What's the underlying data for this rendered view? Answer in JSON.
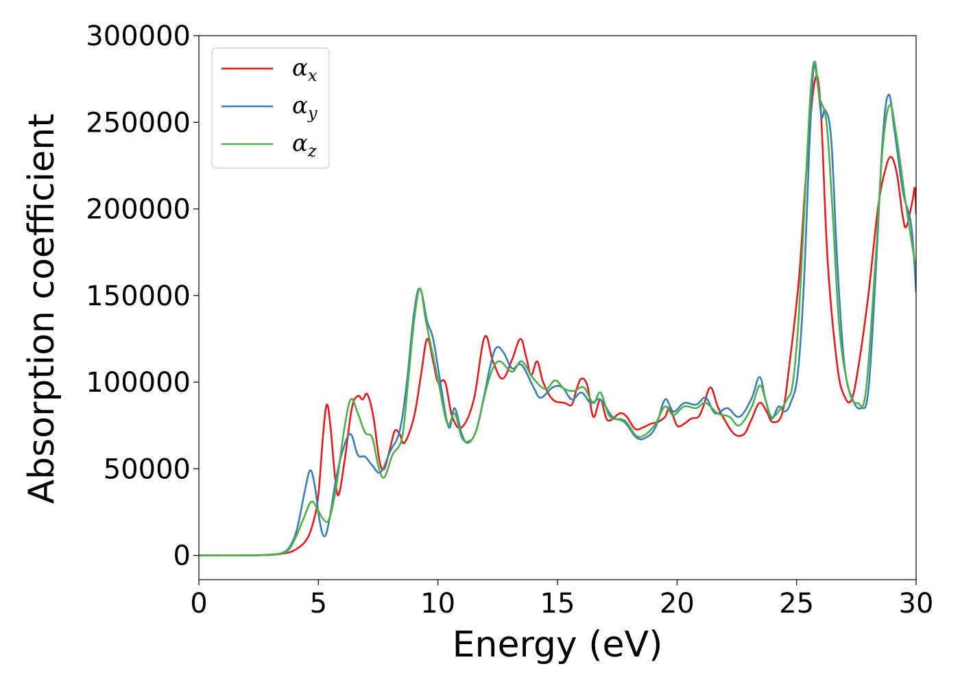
{
  "chart_data": {
    "type": "line",
    "xlabel": "Energy (eV)",
    "ylabel": "Absorption coefficient",
    "xlim": [
      0,
      30
    ],
    "ylim": [
      -14000,
      300000
    ],
    "xticks": [
      0,
      5,
      10,
      15,
      20,
      25,
      30
    ],
    "yticks": [
      0,
      50000,
      100000,
      150000,
      200000,
      250000,
      300000
    ],
    "grid": false,
    "legend": {
      "position": "top-left"
    },
    "series": [
      {
        "name": "αx",
        "symbol": "α",
        "subscript": "x",
        "color": "#e41a1c",
        "points": [
          [
            0,
            0
          ],
          [
            2,
            0
          ],
          [
            3,
            300
          ],
          [
            3.5,
            1000
          ],
          [
            4,
            3000
          ],
          [
            4.5,
            9000
          ],
          [
            4.8,
            20000
          ],
          [
            5,
            35000
          ],
          [
            5.2,
            70000
          ],
          [
            5.35,
            87000
          ],
          [
            5.5,
            75000
          ],
          [
            5.7,
            45000
          ],
          [
            5.85,
            35000
          ],
          [
            6.1,
            55000
          ],
          [
            6.4,
            85000
          ],
          [
            6.65,
            92000
          ],
          [
            6.85,
            90000
          ],
          [
            7.05,
            93000
          ],
          [
            7.3,
            80000
          ],
          [
            7.55,
            55000
          ],
          [
            7.75,
            50000
          ],
          [
            8.0,
            62000
          ],
          [
            8.2,
            72000
          ],
          [
            8.4,
            70000
          ],
          [
            8.6,
            65000
          ],
          [
            9.0,
            80000
          ],
          [
            9.3,
            105000
          ],
          [
            9.55,
            125000
          ],
          [
            9.8,
            112000
          ],
          [
            10.0,
            100000
          ],
          [
            10.3,
            100000
          ],
          [
            10.6,
            80000
          ],
          [
            11.0,
            74000
          ],
          [
            11.5,
            90000
          ],
          [
            11.95,
            126000
          ],
          [
            12.3,
            112000
          ],
          [
            12.7,
            102000
          ],
          [
            13.1,
            113000
          ],
          [
            13.45,
            125000
          ],
          [
            13.7,
            114000
          ],
          [
            13.9,
            104000
          ],
          [
            14.15,
            112000
          ],
          [
            14.4,
            100000
          ],
          [
            14.8,
            90000
          ],
          [
            15.3,
            88000
          ],
          [
            15.6,
            87000
          ],
          [
            15.8,
            96000
          ],
          [
            16.0,
            102000
          ],
          [
            16.25,
            98000
          ],
          [
            16.5,
            80000
          ],
          [
            16.8,
            90000
          ],
          [
            17.1,
            78000
          ],
          [
            17.6,
            82000
          ],
          [
            17.9,
            80000
          ],
          [
            18.25,
            73000
          ],
          [
            18.6,
            74000
          ],
          [
            18.9,
            76000
          ],
          [
            19.2,
            77000
          ],
          [
            19.5,
            80000
          ],
          [
            19.7,
            85000
          ],
          [
            20.0,
            75000
          ],
          [
            20.3,
            76000
          ],
          [
            20.6,
            79000
          ],
          [
            20.9,
            80000
          ],
          [
            21.1,
            86000
          ],
          [
            21.4,
            97000
          ],
          [
            21.7,
            86000
          ],
          [
            22.0,
            78000
          ],
          [
            22.4,
            70000
          ],
          [
            22.8,
            70000
          ],
          [
            23.1,
            78000
          ],
          [
            23.45,
            88000
          ],
          [
            23.75,
            83000
          ],
          [
            24.0,
            77000
          ],
          [
            24.4,
            82000
          ],
          [
            24.7,
            110000
          ],
          [
            25.1,
            160000
          ],
          [
            25.4,
            220000
          ],
          [
            25.75,
            273000
          ],
          [
            26.0,
            260000
          ],
          [
            26.3,
            170000
          ],
          [
            26.7,
            110000
          ],
          [
            27.0,
            92000
          ],
          [
            27.3,
            90000
          ],
          [
            27.6,
            110000
          ],
          [
            28.0,
            150000
          ],
          [
            28.4,
            200000
          ],
          [
            28.7,
            222000
          ],
          [
            28.95,
            230000
          ],
          [
            29.2,
            220000
          ],
          [
            29.45,
            195000
          ],
          [
            29.6,
            190000
          ],
          [
            29.85,
            205000
          ],
          [
            29.95,
            212000
          ],
          [
            30.0,
            197000
          ]
        ]
      },
      {
        "name": "αy",
        "symbol": "α",
        "subscript": "y",
        "color": "#377eb8",
        "points": [
          [
            0,
            0
          ],
          [
            2,
            0
          ],
          [
            3,
            500
          ],
          [
            3.5,
            1500
          ],
          [
            3.8,
            5000
          ],
          [
            4.1,
            15000
          ],
          [
            4.4,
            35000
          ],
          [
            4.65,
            49000
          ],
          [
            4.85,
            40000
          ],
          [
            5.05,
            20000
          ],
          [
            5.25,
            11000
          ],
          [
            5.45,
            20000
          ],
          [
            5.75,
            45000
          ],
          [
            6.05,
            62000
          ],
          [
            6.35,
            70000
          ],
          [
            6.65,
            58000
          ],
          [
            6.95,
            57000
          ],
          [
            7.25,
            52000
          ],
          [
            7.6,
            48000
          ],
          [
            8.0,
            60000
          ],
          [
            8.4,
            72000
          ],
          [
            8.7,
            100000
          ],
          [
            9.0,
            140000
          ],
          [
            9.25,
            154000
          ],
          [
            9.55,
            135000
          ],
          [
            9.8,
            125000
          ],
          [
            10.1,
            100000
          ],
          [
            10.45,
            74000
          ],
          [
            10.7,
            85000
          ],
          [
            11.0,
            70000
          ],
          [
            11.25,
            65000
          ],
          [
            11.6,
            72000
          ],
          [
            11.9,
            90000
          ],
          [
            12.2,
            110000
          ],
          [
            12.45,
            120000
          ],
          [
            12.75,
            117000
          ],
          [
            13.1,
            108000
          ],
          [
            13.5,
            110000
          ],
          [
            14.0,
            97000
          ],
          [
            14.3,
            91000
          ],
          [
            14.8,
            97000
          ],
          [
            15.2,
            97000
          ],
          [
            15.6,
            90000
          ],
          [
            16.0,
            94000
          ],
          [
            16.4,
            88000
          ],
          [
            16.8,
            90000
          ],
          [
            17.3,
            80000
          ],
          [
            17.8,
            77000
          ],
          [
            18.3,
            68000
          ],
          [
            18.7,
            68000
          ],
          [
            19.1,
            74000
          ],
          [
            19.5,
            90000
          ],
          [
            19.85,
            83000
          ],
          [
            20.3,
            88000
          ],
          [
            20.8,
            87000
          ],
          [
            21.2,
            91000
          ],
          [
            21.6,
            82000
          ],
          [
            22.1,
            85000
          ],
          [
            22.6,
            80000
          ],
          [
            23.1,
            90000
          ],
          [
            23.45,
            103000
          ],
          [
            23.7,
            90000
          ],
          [
            23.95,
            79000
          ],
          [
            24.25,
            86000
          ],
          [
            24.5,
            83000
          ],
          [
            24.75,
            88000
          ],
          [
            25.05,
            105000
          ],
          [
            25.3,
            155000
          ],
          [
            25.55,
            240000
          ],
          [
            25.72,
            282000
          ],
          [
            25.9,
            270000
          ],
          [
            26.05,
            253000
          ],
          [
            26.2,
            257000
          ],
          [
            26.45,
            240000
          ],
          [
            26.7,
            170000
          ],
          [
            27.0,
            110000
          ],
          [
            27.35,
            90000
          ],
          [
            27.7,
            85000
          ],
          [
            28.0,
            95000
          ],
          [
            28.3,
            160000
          ],
          [
            28.6,
            240000
          ],
          [
            28.85,
            266000
          ],
          [
            29.1,
            245000
          ],
          [
            29.45,
            210000
          ],
          [
            29.8,
            190000
          ],
          [
            30.0,
            152000
          ]
        ]
      },
      {
        "name": "αz",
        "symbol": "α",
        "subscript": "z",
        "color": "#4daf4a",
        "points": [
          [
            0,
            0
          ],
          [
            2,
            0
          ],
          [
            3,
            400
          ],
          [
            3.5,
            1200
          ],
          [
            3.8,
            4000
          ],
          [
            4.1,
            12000
          ],
          [
            4.4,
            22000
          ],
          [
            4.7,
            31000
          ],
          [
            4.95,
            27000
          ],
          [
            5.2,
            21000
          ],
          [
            5.45,
            21000
          ],
          [
            5.75,
            40000
          ],
          [
            6.05,
            70000
          ],
          [
            6.35,
            90000
          ],
          [
            6.65,
            82000
          ],
          [
            6.95,
            71000
          ],
          [
            7.25,
            68000
          ],
          [
            7.5,
            52000
          ],
          [
            7.75,
            45000
          ],
          [
            8.1,
            58000
          ],
          [
            8.5,
            68000
          ],
          [
            8.75,
            100000
          ],
          [
            9.0,
            135000
          ],
          [
            9.25,
            154000
          ],
          [
            9.5,
            135000
          ],
          [
            9.8,
            115000
          ],
          [
            10.05,
            98000
          ],
          [
            10.4,
            76000
          ],
          [
            10.7,
            82000
          ],
          [
            11.0,
            68000
          ],
          [
            11.3,
            66000
          ],
          [
            11.6,
            72000
          ],
          [
            12.0,
            95000
          ],
          [
            12.3,
            108000
          ],
          [
            12.6,
            112000
          ],
          [
            13.1,
            106000
          ],
          [
            13.5,
            112000
          ],
          [
            14.0,
            102000
          ],
          [
            14.5,
            96000
          ],
          [
            14.9,
            101000
          ],
          [
            15.3,
            96000
          ],
          [
            15.7,
            95000
          ],
          [
            16.1,
            97000
          ],
          [
            16.5,
            88000
          ],
          [
            16.8,
            94000
          ],
          [
            17.2,
            80000
          ],
          [
            17.8,
            78000
          ],
          [
            18.3,
            69000
          ],
          [
            18.7,
            70000
          ],
          [
            19.1,
            76000
          ],
          [
            19.5,
            86000
          ],
          [
            19.85,
            81000
          ],
          [
            20.3,
            86000
          ],
          [
            20.8,
            85000
          ],
          [
            21.2,
            88000
          ],
          [
            21.7,
            82000
          ],
          [
            22.2,
            80000
          ],
          [
            22.6,
            75000
          ],
          [
            23.1,
            85000
          ],
          [
            23.45,
            98000
          ],
          [
            23.7,
            90000
          ],
          [
            23.95,
            80000
          ],
          [
            24.3,
            84000
          ],
          [
            24.6,
            90000
          ],
          [
            24.85,
            100000
          ],
          [
            25.1,
            140000
          ],
          [
            25.4,
            220000
          ],
          [
            25.6,
            270000
          ],
          [
            25.77,
            285000
          ],
          [
            25.95,
            265000
          ],
          [
            26.25,
            250000
          ],
          [
            26.5,
            200000
          ],
          [
            26.8,
            130000
          ],
          [
            27.2,
            95000
          ],
          [
            27.55,
            88000
          ],
          [
            27.9,
            95000
          ],
          [
            28.3,
            170000
          ],
          [
            28.6,
            235000
          ],
          [
            28.9,
            260000
          ],
          [
            29.2,
            240000
          ],
          [
            29.6,
            200000
          ],
          [
            30.0,
            165000
          ]
        ]
      }
    ]
  }
}
